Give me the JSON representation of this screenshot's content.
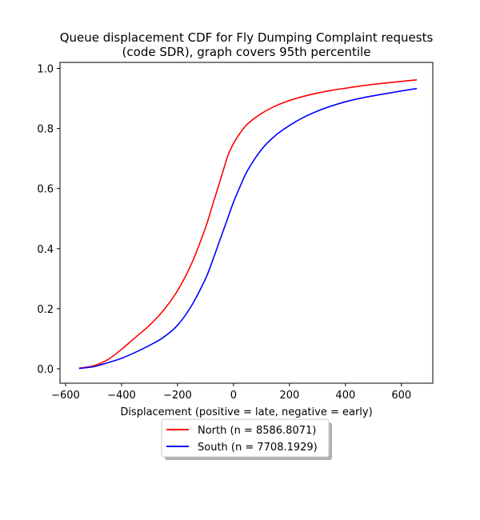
{
  "chart_data": {
    "type": "line",
    "title": "Queue displacement CDF for Fly Dumping Complaint  requests (code SDR), graph covers 95th percentile",
    "title_lines": [
      "Queue displacement CDF for Fly Dumping Complaint  requests",
      "(code SDR), graph covers 95th percentile"
    ],
    "xlabel": "Displacement (positive = late, negative = early)",
    "ylabel": "",
    "xlim": [
      -620,
      712
    ],
    "ylim": [
      -0.048,
      1.02
    ],
    "xticks": [
      -600,
      -400,
      -200,
      0,
      200,
      400,
      600
    ],
    "xtick_labels": [
      "−600",
      "−400",
      "−200",
      "0",
      "200",
      "400",
      "600"
    ],
    "yticks": [
      0.0,
      0.2,
      0.4,
      0.6,
      0.8,
      1.0
    ],
    "ytick_labels": [
      "0.0",
      "0.2",
      "0.4",
      "0.6",
      "0.8",
      "1.0"
    ],
    "grid": false,
    "legend_position": "below",
    "series": [
      {
        "name": "North (n = 8586.8071)",
        "color": "#ff0000",
        "x": [
          -552,
          -500,
          -450,
          -400,
          -350,
          -300,
          -250,
          -200,
          -150,
          -100,
          -80,
          -60,
          -40,
          -20,
          0,
          20,
          50,
          100,
          150,
          200,
          250,
          300,
          350,
          400,
          450,
          500,
          550,
          600,
          655
        ],
        "y": [
          0.002,
          0.01,
          0.03,
          0.065,
          0.105,
          0.145,
          0.195,
          0.26,
          0.35,
          0.47,
          0.53,
          0.59,
          0.65,
          0.71,
          0.75,
          0.78,
          0.815,
          0.85,
          0.875,
          0.893,
          0.907,
          0.918,
          0.927,
          0.934,
          0.941,
          0.947,
          0.952,
          0.957,
          0.962
        ]
      },
      {
        "name": "South (n = 7708.1929)",
        "color": "#0000ff",
        "x": [
          -552,
          -500,
          -450,
          -400,
          -350,
          -300,
          -250,
          -200,
          -150,
          -100,
          -75,
          -50,
          -25,
          0,
          25,
          50,
          100,
          150,
          200,
          250,
          300,
          350,
          400,
          450,
          500,
          550,
          600,
          655
        ],
        "y": [
          0.001,
          0.007,
          0.02,
          0.035,
          0.055,
          0.078,
          0.105,
          0.145,
          0.21,
          0.3,
          0.36,
          0.425,
          0.49,
          0.555,
          0.61,
          0.66,
          0.73,
          0.777,
          0.81,
          0.837,
          0.858,
          0.875,
          0.889,
          0.9,
          0.909,
          0.917,
          0.925,
          0.933
        ]
      }
    ]
  }
}
